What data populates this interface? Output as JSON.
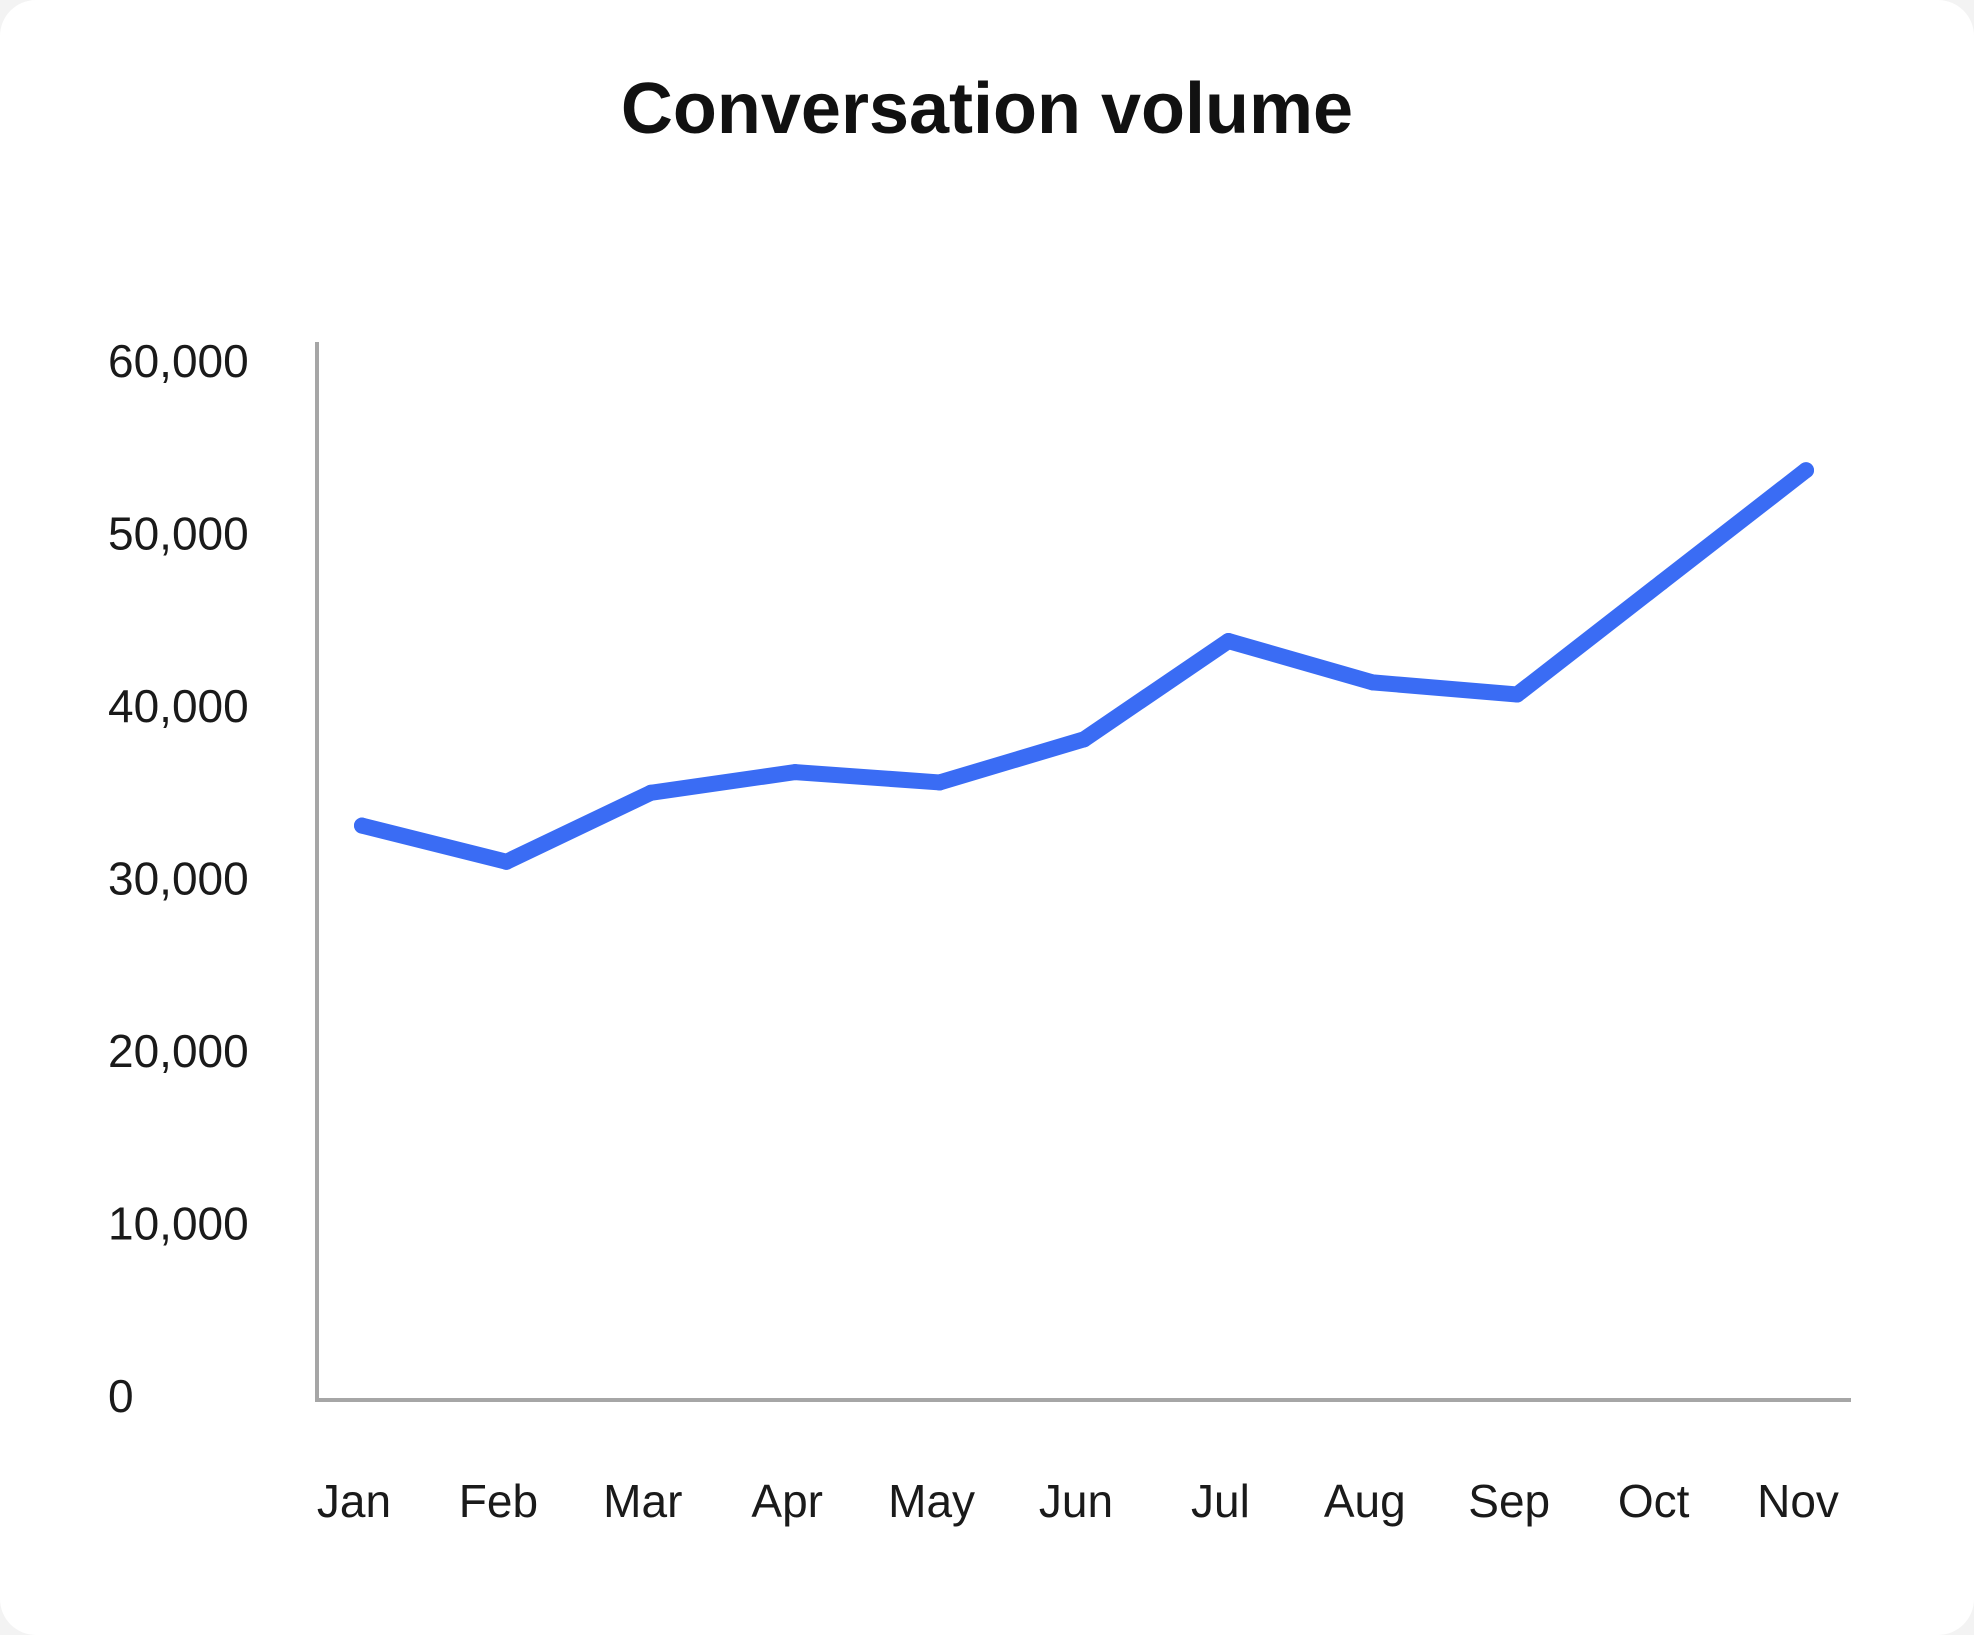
{
  "chart_data": {
    "type": "line",
    "title": "Conversation volume",
    "xlabel": "",
    "ylabel": "",
    "categories": [
      "Jan",
      "Feb",
      "Mar",
      "Apr",
      "May",
      "Jun",
      "Jul",
      "Aug",
      "Sep",
      "Oct",
      "Nov"
    ],
    "series": [
      {
        "values": [
          33300,
          31200,
          35200,
          36400,
          35800,
          38300,
          44000,
          41600,
          40900,
          47400,
          53900
        ],
        "color": "#3a6cf4"
      }
    ],
    "ylim": [
      0,
      60000
    ],
    "yticks": [
      "0",
      "10,000",
      "20,000",
      "30,000",
      "40,000",
      "50,000",
      "60,000"
    ],
    "ytick_values": [
      0,
      10000,
      20000,
      30000,
      40000,
      50000,
      60000
    ],
    "grid": false,
    "legend": "none",
    "axis_color": "#a6a6a6"
  }
}
